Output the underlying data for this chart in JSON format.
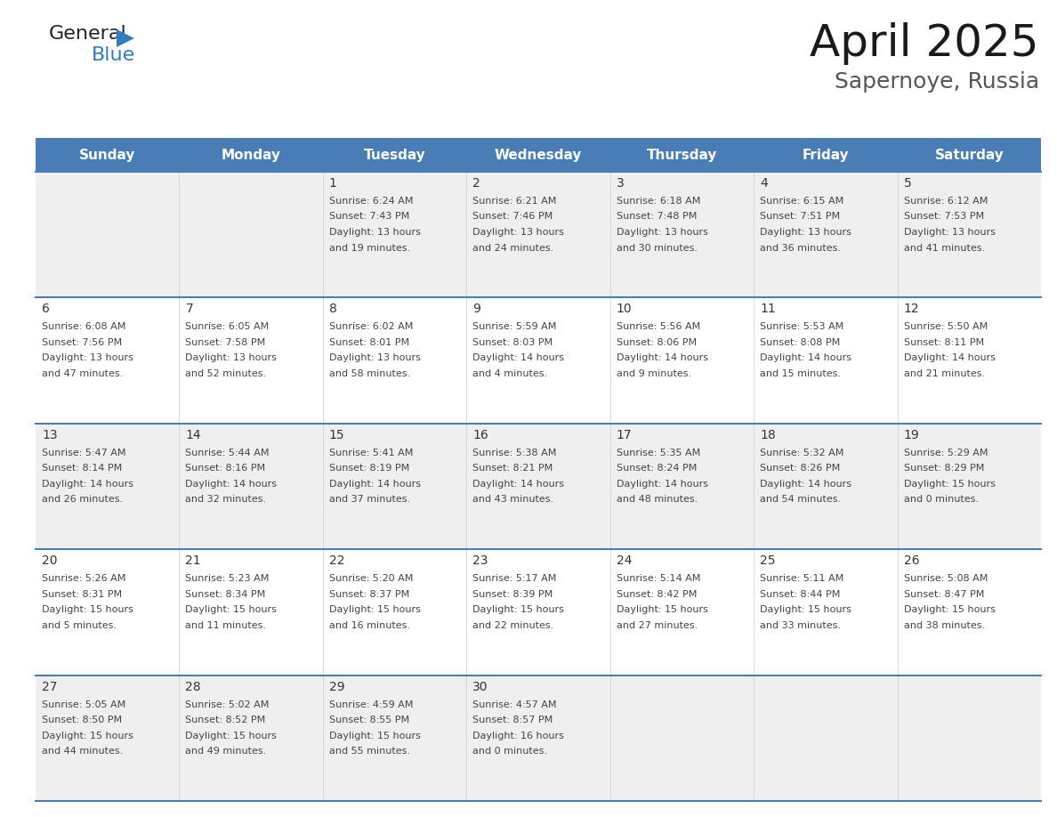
{
  "title": "April 2025",
  "subtitle": "Sapernoye, Russia",
  "days_of_week": [
    "Sunday",
    "Monday",
    "Tuesday",
    "Wednesday",
    "Thursday",
    "Friday",
    "Saturday"
  ],
  "header_bg": "#4A7DB5",
  "header_text": "#FFFFFF",
  "row_bg_light": "#EFEFEF",
  "row_bg_white": "#FFFFFF",
  "border_color": "#4A7DB5",
  "text_color": "#444444",
  "day_num_color": "#333333",
  "logo_general_color": "#222222",
  "logo_blue_color": "#2E7FC1",
  "weeks": [
    [
      {
        "day": null,
        "sunrise": null,
        "sunset": null,
        "daylight": null
      },
      {
        "day": null,
        "sunrise": null,
        "sunset": null,
        "daylight": null
      },
      {
        "day": 1,
        "sunrise": "6:24 AM",
        "sunset": "7:43 PM",
        "daylight": "13 hours\nand 19 minutes."
      },
      {
        "day": 2,
        "sunrise": "6:21 AM",
        "sunset": "7:46 PM",
        "daylight": "13 hours\nand 24 minutes."
      },
      {
        "day": 3,
        "sunrise": "6:18 AM",
        "sunset": "7:48 PM",
        "daylight": "13 hours\nand 30 minutes."
      },
      {
        "day": 4,
        "sunrise": "6:15 AM",
        "sunset": "7:51 PM",
        "daylight": "13 hours\nand 36 minutes."
      },
      {
        "day": 5,
        "sunrise": "6:12 AM",
        "sunset": "7:53 PM",
        "daylight": "13 hours\nand 41 minutes."
      }
    ],
    [
      {
        "day": 6,
        "sunrise": "6:08 AM",
        "sunset": "7:56 PM",
        "daylight": "13 hours\nand 47 minutes."
      },
      {
        "day": 7,
        "sunrise": "6:05 AM",
        "sunset": "7:58 PM",
        "daylight": "13 hours\nand 52 minutes."
      },
      {
        "day": 8,
        "sunrise": "6:02 AM",
        "sunset": "8:01 PM",
        "daylight": "13 hours\nand 58 minutes."
      },
      {
        "day": 9,
        "sunrise": "5:59 AM",
        "sunset": "8:03 PM",
        "daylight": "14 hours\nand 4 minutes."
      },
      {
        "day": 10,
        "sunrise": "5:56 AM",
        "sunset": "8:06 PM",
        "daylight": "14 hours\nand 9 minutes."
      },
      {
        "day": 11,
        "sunrise": "5:53 AM",
        "sunset": "8:08 PM",
        "daylight": "14 hours\nand 15 minutes."
      },
      {
        "day": 12,
        "sunrise": "5:50 AM",
        "sunset": "8:11 PM",
        "daylight": "14 hours\nand 21 minutes."
      }
    ],
    [
      {
        "day": 13,
        "sunrise": "5:47 AM",
        "sunset": "8:14 PM",
        "daylight": "14 hours\nand 26 minutes."
      },
      {
        "day": 14,
        "sunrise": "5:44 AM",
        "sunset": "8:16 PM",
        "daylight": "14 hours\nand 32 minutes."
      },
      {
        "day": 15,
        "sunrise": "5:41 AM",
        "sunset": "8:19 PM",
        "daylight": "14 hours\nand 37 minutes."
      },
      {
        "day": 16,
        "sunrise": "5:38 AM",
        "sunset": "8:21 PM",
        "daylight": "14 hours\nand 43 minutes."
      },
      {
        "day": 17,
        "sunrise": "5:35 AM",
        "sunset": "8:24 PM",
        "daylight": "14 hours\nand 48 minutes."
      },
      {
        "day": 18,
        "sunrise": "5:32 AM",
        "sunset": "8:26 PM",
        "daylight": "14 hours\nand 54 minutes."
      },
      {
        "day": 19,
        "sunrise": "5:29 AM",
        "sunset": "8:29 PM",
        "daylight": "15 hours\nand 0 minutes."
      }
    ],
    [
      {
        "day": 20,
        "sunrise": "5:26 AM",
        "sunset": "8:31 PM",
        "daylight": "15 hours\nand 5 minutes."
      },
      {
        "day": 21,
        "sunrise": "5:23 AM",
        "sunset": "8:34 PM",
        "daylight": "15 hours\nand 11 minutes."
      },
      {
        "day": 22,
        "sunrise": "5:20 AM",
        "sunset": "8:37 PM",
        "daylight": "15 hours\nand 16 minutes."
      },
      {
        "day": 23,
        "sunrise": "5:17 AM",
        "sunset": "8:39 PM",
        "daylight": "15 hours\nand 22 minutes."
      },
      {
        "day": 24,
        "sunrise": "5:14 AM",
        "sunset": "8:42 PM",
        "daylight": "15 hours\nand 27 minutes."
      },
      {
        "day": 25,
        "sunrise": "5:11 AM",
        "sunset": "8:44 PM",
        "daylight": "15 hours\nand 33 minutes."
      },
      {
        "day": 26,
        "sunrise": "5:08 AM",
        "sunset": "8:47 PM",
        "daylight": "15 hours\nand 38 minutes."
      }
    ],
    [
      {
        "day": 27,
        "sunrise": "5:05 AM",
        "sunset": "8:50 PM",
        "daylight": "15 hours\nand 44 minutes."
      },
      {
        "day": 28,
        "sunrise": "5:02 AM",
        "sunset": "8:52 PM",
        "daylight": "15 hours\nand 49 minutes."
      },
      {
        "day": 29,
        "sunrise": "4:59 AM",
        "sunset": "8:55 PM",
        "daylight": "15 hours\nand 55 minutes."
      },
      {
        "day": 30,
        "sunrise": "4:57 AM",
        "sunset": "8:57 PM",
        "daylight": "16 hours\nand 0 minutes."
      },
      {
        "day": null,
        "sunrise": null,
        "sunset": null,
        "daylight": null
      },
      {
        "day": null,
        "sunrise": null,
        "sunset": null,
        "daylight": null
      },
      {
        "day": null,
        "sunrise": null,
        "sunset": null,
        "daylight": null
      }
    ]
  ]
}
